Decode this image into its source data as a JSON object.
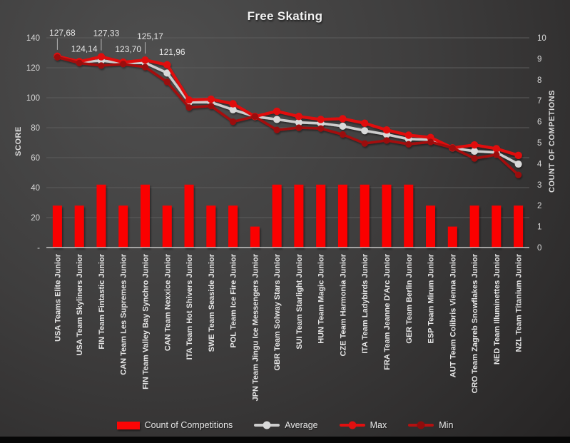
{
  "title": "Free Skating",
  "axes": {
    "left_title": "SCORE",
    "right_title": "COUNT OF COMPETIONS",
    "left_ticks": [
      "-",
      "20",
      "40",
      "60",
      "80",
      "100",
      "120",
      "140"
    ],
    "right_ticks": [
      "0",
      "1",
      "2",
      "3",
      "4",
      "5",
      "6",
      "7",
      "8",
      "9",
      "10"
    ]
  },
  "legend": [
    {
      "label": "Count of Competitions",
      "color": "#FB0505"
    },
    {
      "label": "Average",
      "color": "#CDCDCD"
    },
    {
      "label": "Max",
      "color": "#E01010"
    },
    {
      "label": "Min",
      "color": "#A50E0E"
    }
  ],
  "chart_data": {
    "type": "combo",
    "title": "Free Skating",
    "ylabel_left": "SCORE",
    "ylabel_right": "COUNT OF COMPETIONS",
    "ylim_left": [
      0,
      140
    ],
    "ylim_right": [
      0,
      10
    ],
    "grid_step_left": 20,
    "legend_position": "bottom",
    "categories": [
      "USA Teams Elite Junior",
      "USA Team Skyliners Junior",
      "FIN Team Fintastic Junior",
      "CAN Team Les Supremes Junior",
      "FIN Team Valley Bay Synchro Junior",
      "CAN Team Nexxice Junior",
      "ITA Team Hot Shivers Junior",
      "SWE Team Seaside Junior",
      "POL Team Ice Fire Junior",
      "JPN Team Jingu Ice Messengers Junior",
      "GBR Team Solway Stars Junior",
      "SUI Team Starlight Junior",
      "HUN Team Magic Junior",
      "CZE Team Harmonia Junior",
      "ITA Team Ladybirds Junior",
      "FRA Team Jeanne D'Arc Junior",
      "GER Team Berlin Junior",
      "ESP Team Mirum Junior",
      "AUT Team Colibris Vienna Junior",
      "CRO Team Zagreb Snowflakes Junior",
      "NED Team Illuminettes Junior",
      "NZL Team Titanium Junior"
    ],
    "series": [
      {
        "name": "Count of Competitions",
        "type": "bar",
        "axis": "right",
        "color": "#FB0505",
        "values": [
          2,
          2,
          3,
          2,
          3,
          2,
          3,
          2,
          2,
          1,
          3,
          3,
          3,
          3,
          3,
          3,
          3,
          2,
          1,
          2,
          2,
          2
        ]
      },
      {
        "name": "Average",
        "type": "line",
        "axis": "left",
        "color": "#CDCDCD",
        "marker_color": "#D9D9D9",
        "values": [
          127.4,
          123.8,
          124.8,
          123.2,
          123.3,
          116.5,
          97.0,
          97.0,
          92.0,
          87.5,
          85.5,
          83.5,
          82.9,
          81.0,
          78.0,
          75.5,
          72.4,
          72.0,
          66.5,
          64.3,
          63.5,
          55.7
        ]
      },
      {
        "name": "Max",
        "type": "line",
        "axis": "left",
        "color": "#E01010",
        "marker_color": "#E01010",
        "values": [
          127.68,
          124.14,
          127.33,
          123.7,
          125.17,
          121.96,
          98.5,
          99.0,
          96.0,
          87.5,
          91.0,
          87.5,
          85.5,
          86.0,
          83.0,
          78.5,
          75.0,
          73.5,
          66.5,
          68.5,
          66.0,
          61.5
        ]
      },
      {
        "name": "Min",
        "type": "line",
        "axis": "left",
        "color": "#A50E0E",
        "marker_color": "#9B0C0C",
        "values": [
          127.0,
          123.2,
          121.5,
          122.5,
          120.5,
          110.5,
          93.5,
          94.5,
          84.0,
          87.5,
          78.5,
          80.0,
          79.5,
          75.5,
          69.5,
          71.5,
          69.0,
          70.5,
          66.5,
          59.5,
          62.0,
          48.5
        ]
      }
    ],
    "data_labels": {
      "series": "Max",
      "items": [
        {
          "index": 0,
          "text": "127,68",
          "raised": true
        },
        {
          "index": 1,
          "text": "124,14",
          "raised": false
        },
        {
          "index": 2,
          "text": "127,33",
          "raised": true
        },
        {
          "index": 3,
          "text": "123,70",
          "raised": false
        },
        {
          "index": 4,
          "text": "125,17",
          "raised": true
        },
        {
          "index": 5,
          "text": "121,96",
          "raised": false
        }
      ]
    }
  }
}
